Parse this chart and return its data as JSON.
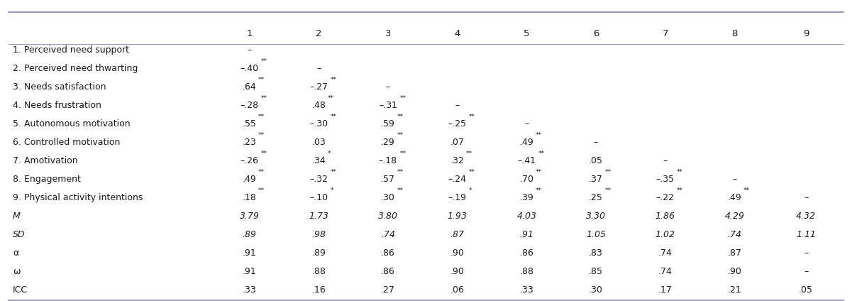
{
  "col_headers": [
    "",
    "1",
    "2",
    "3",
    "4",
    "5",
    "6",
    "7",
    "8",
    "9"
  ],
  "rows": [
    [
      "1. Perceived need support",
      "–",
      "",
      "",
      "",
      "",
      "",
      "",
      "",
      ""
    ],
    [
      "2. Perceived need thwarting",
      "–.40**",
      "–",
      "",
      "",
      "",
      "",
      "",
      "",
      ""
    ],
    [
      "3. Needs satisfaction",
      ".64**",
      "–.27**",
      "–",
      "",
      "",
      "",
      "",
      "",
      ""
    ],
    [
      "4. Needs frustration",
      "–.28**",
      ".48**",
      "–.31**",
      "–",
      "",
      "",
      "",
      "",
      ""
    ],
    [
      "5. Autonomous motivation",
      ".55**",
      "–.30**",
      ".59**",
      "–.25**",
      "–",
      "",
      "",
      "",
      ""
    ],
    [
      "6. Controlled motivation",
      ".23**",
      ".03",
      ".29**",
      ".07",
      ".49**",
      "–",
      "",
      "",
      ""
    ],
    [
      "7. Amotivation",
      "–.26**",
      ".34*",
      "–.18**",
      ".32**",
      "–.41**",
      ".05",
      "–",
      "",
      ""
    ],
    [
      "8. Engagement",
      ".49**",
      "–.32**",
      ".57**",
      "–.24**",
      ".70**",
      ".37**",
      "–.35**",
      "–",
      ""
    ],
    [
      "9. Physical activity intentions",
      ".18**",
      "–.10*",
      ".30**",
      "–.19*",
      ".39**",
      ".25**",
      "–.22**",
      ".49**",
      "–"
    ],
    [
      "M",
      "3.79",
      "1.73",
      "3.80",
      "1.93",
      "4.03",
      "3.30",
      "1.86",
      "4.29",
      "4.32"
    ],
    [
      "SD",
      ".89",
      ".98",
      ".74",
      ".87",
      ".91",
      "1.05",
      "1.02",
      ".74",
      "1.11"
    ],
    [
      "α",
      ".91",
      ".89",
      ".86",
      ".90",
      ".86",
      ".83",
      ".74",
      ".87",
      "–"
    ],
    [
      "ω",
      ".91",
      ".88",
      ".86",
      ".90",
      ".88",
      ".85",
      ".74",
      ".90",
      "–"
    ],
    [
      "ICC",
      ".33",
      ".16",
      ".27",
      ".06",
      ".33",
      ".30",
      ".17",
      ".21",
      ".05"
    ]
  ],
  "line_color": "#9999bb",
  "bg_color": "#ffffff",
  "text_color": "#1a1a1a",
  "font_size": 9.0,
  "italic_labels": [
    "M",
    "SD"
  ],
  "fig_width": 12.01,
  "fig_height": 4.24,
  "dpi": 100
}
